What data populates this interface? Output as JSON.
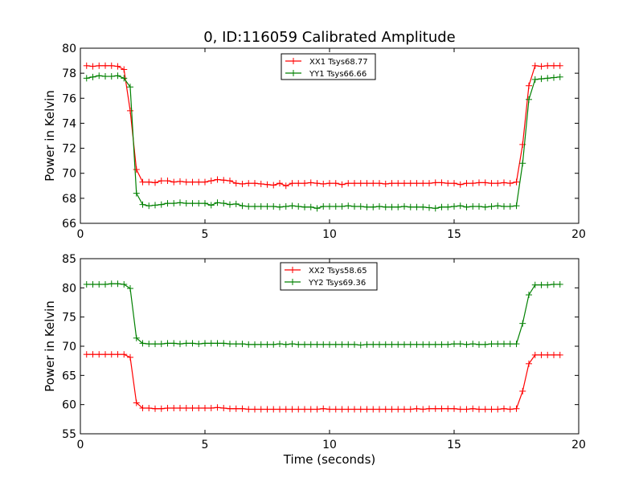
{
  "figure": {
    "title": "0, ID:116059 Calibrated Amplitude"
  },
  "chart_data": [
    {
      "type": "line",
      "title": "0, ID:116059 Calibrated Amplitude",
      "xlabel": "",
      "ylabel": "Power in Kelvin",
      "xlim": [
        0,
        20
      ],
      "ylim": [
        66,
        80
      ],
      "xticks": [
        "0",
        "5",
        "10",
        "15",
        "20"
      ],
      "yticks": [
        "66",
        "68",
        "70",
        "72",
        "74",
        "76",
        "78",
        "80"
      ],
      "grid": false,
      "legend_position": "top-center",
      "series": [
        {
          "name": "XX1 Tsys68.77",
          "color": "#ff0000",
          "x": [
            0.25,
            0.5,
            0.75,
            1.0,
            1.25,
            1.5,
            1.75,
            2.0,
            2.25,
            2.5,
            2.75,
            3.0,
            3.25,
            3.5,
            3.75,
            4.0,
            4.25,
            4.5,
            4.75,
            5.0,
            5.25,
            5.5,
            5.75,
            6.0,
            6.25,
            6.5,
            6.75,
            7.0,
            7.25,
            7.5,
            7.75,
            8.0,
            8.25,
            8.5,
            8.75,
            9.0,
            9.25,
            9.5,
            9.75,
            10.0,
            10.25,
            10.5,
            10.75,
            11.0,
            11.25,
            11.5,
            11.75,
            12.0,
            12.25,
            12.5,
            12.75,
            13.0,
            13.25,
            13.5,
            13.75,
            14.0,
            14.25,
            14.5,
            14.75,
            15.0,
            15.25,
            15.5,
            15.75,
            16.0,
            16.25,
            16.5,
            16.75,
            17.0,
            17.25,
            17.5,
            17.75,
            18.0,
            18.25,
            18.5,
            18.75,
            19.0,
            19.25
          ],
          "y": [
            78.6,
            78.55,
            78.6,
            78.6,
            78.6,
            78.55,
            78.3,
            75.0,
            70.3,
            69.3,
            69.3,
            69.25,
            69.4,
            69.4,
            69.3,
            69.35,
            69.3,
            69.3,
            69.3,
            69.3,
            69.4,
            69.5,
            69.45,
            69.4,
            69.2,
            69.15,
            69.2,
            69.2,
            69.15,
            69.1,
            69.05,
            69.2,
            69.0,
            69.2,
            69.2,
            69.2,
            69.25,
            69.2,
            69.15,
            69.2,
            69.2,
            69.1,
            69.2,
            69.2,
            69.2,
            69.2,
            69.2,
            69.2,
            69.15,
            69.2,
            69.2,
            69.2,
            69.2,
            69.2,
            69.2,
            69.2,
            69.25,
            69.25,
            69.2,
            69.2,
            69.1,
            69.2,
            69.2,
            69.25,
            69.25,
            69.2,
            69.2,
            69.25,
            69.2,
            69.3,
            72.3,
            77.0,
            78.6,
            78.55,
            78.6,
            78.6,
            78.6
          ]
        },
        {
          "name": "YY1 Tsys66.66",
          "color": "#008000",
          "x": [
            0.25,
            0.5,
            0.75,
            1.0,
            1.25,
            1.5,
            1.75,
            2.0,
            2.25,
            2.5,
            2.75,
            3.0,
            3.25,
            3.5,
            3.75,
            4.0,
            4.25,
            4.5,
            4.75,
            5.0,
            5.25,
            5.5,
            5.75,
            6.0,
            6.25,
            6.5,
            6.75,
            7.0,
            7.25,
            7.5,
            7.75,
            8.0,
            8.25,
            8.5,
            8.75,
            9.0,
            9.25,
            9.5,
            9.75,
            10.0,
            10.25,
            10.5,
            10.75,
            11.0,
            11.25,
            11.5,
            11.75,
            12.0,
            12.25,
            12.5,
            12.75,
            13.0,
            13.25,
            13.5,
            13.75,
            14.0,
            14.25,
            14.5,
            14.75,
            15.0,
            15.25,
            15.5,
            15.75,
            16.0,
            16.25,
            16.5,
            16.75,
            17.0,
            17.25,
            17.5,
            17.75,
            18.0,
            18.25,
            18.5,
            18.75,
            19.0,
            19.25
          ],
          "y": [
            77.6,
            77.7,
            77.8,
            77.75,
            77.75,
            77.8,
            77.6,
            76.9,
            68.4,
            67.5,
            67.4,
            67.45,
            67.5,
            67.6,
            67.6,
            67.65,
            67.6,
            67.6,
            67.6,
            67.6,
            67.45,
            67.65,
            67.6,
            67.5,
            67.55,
            67.4,
            67.35,
            67.35,
            67.35,
            67.35,
            67.35,
            67.3,
            67.35,
            67.4,
            67.35,
            67.3,
            67.3,
            67.2,
            67.35,
            67.35,
            67.35,
            67.35,
            67.4,
            67.35,
            67.35,
            67.3,
            67.3,
            67.35,
            67.3,
            67.3,
            67.3,
            67.35,
            67.3,
            67.3,
            67.3,
            67.25,
            67.2,
            67.3,
            67.3,
            67.35,
            67.4,
            67.3,
            67.35,
            67.35,
            67.3,
            67.35,
            67.4,
            67.35,
            67.35,
            67.4,
            70.8,
            75.9,
            77.5,
            77.55,
            77.6,
            77.65,
            77.7
          ]
        }
      ]
    },
    {
      "type": "line",
      "title": "",
      "xlabel": "Time (seconds)",
      "ylabel": "Power in Kelvin",
      "xlim": [
        0,
        20
      ],
      "ylim": [
        55,
        85
      ],
      "xticks": [
        "0",
        "5",
        "10",
        "15",
        "20"
      ],
      "yticks": [
        "55",
        "60",
        "65",
        "70",
        "75",
        "80",
        "85"
      ],
      "grid": false,
      "legend_position": "top-center",
      "series": [
        {
          "name": "XX2 Tsys58.65",
          "color": "#ff0000",
          "x": [
            0.25,
            0.5,
            0.75,
            1.0,
            1.25,
            1.5,
            1.75,
            2.0,
            2.25,
            2.5,
            2.75,
            3.0,
            3.25,
            3.5,
            3.75,
            4.0,
            4.25,
            4.5,
            4.75,
            5.0,
            5.25,
            5.5,
            5.75,
            6.0,
            6.25,
            6.5,
            6.75,
            7.0,
            7.25,
            7.5,
            7.75,
            8.0,
            8.25,
            8.5,
            8.75,
            9.0,
            9.25,
            9.5,
            9.75,
            10.0,
            10.25,
            10.5,
            10.75,
            11.0,
            11.25,
            11.5,
            11.75,
            12.0,
            12.25,
            12.5,
            12.75,
            13.0,
            13.25,
            13.5,
            13.75,
            14.0,
            14.25,
            14.5,
            14.75,
            15.0,
            15.25,
            15.5,
            15.75,
            16.0,
            16.25,
            16.5,
            16.75,
            17.0,
            17.25,
            17.5,
            17.75,
            18.0,
            18.25,
            18.5,
            18.75,
            19.0,
            19.25
          ],
          "y": [
            68.6,
            68.6,
            68.6,
            68.6,
            68.6,
            68.6,
            68.6,
            68.1,
            60.3,
            59.4,
            59.4,
            59.3,
            59.3,
            59.4,
            59.4,
            59.4,
            59.4,
            59.4,
            59.4,
            59.4,
            59.4,
            59.5,
            59.4,
            59.3,
            59.3,
            59.3,
            59.2,
            59.2,
            59.2,
            59.2,
            59.2,
            59.2,
            59.2,
            59.2,
            59.2,
            59.2,
            59.2,
            59.2,
            59.3,
            59.2,
            59.2,
            59.2,
            59.2,
            59.2,
            59.2,
            59.2,
            59.2,
            59.2,
            59.2,
            59.2,
            59.2,
            59.2,
            59.2,
            59.3,
            59.2,
            59.3,
            59.3,
            59.3,
            59.3,
            59.3,
            59.2,
            59.2,
            59.3,
            59.2,
            59.2,
            59.2,
            59.2,
            59.3,
            59.2,
            59.3,
            62.3,
            67.0,
            68.5,
            68.5,
            68.5,
            68.5,
            68.5
          ]
        },
        {
          "name": "YY2 Tsys69.36",
          "color": "#008000",
          "x": [
            0.25,
            0.5,
            0.75,
            1.0,
            1.25,
            1.5,
            1.75,
            2.0,
            2.25,
            2.5,
            2.75,
            3.0,
            3.25,
            3.5,
            3.75,
            4.0,
            4.25,
            4.5,
            4.75,
            5.0,
            5.25,
            5.5,
            5.75,
            6.0,
            6.25,
            6.5,
            6.75,
            7.0,
            7.25,
            7.5,
            7.75,
            8.0,
            8.25,
            8.5,
            8.75,
            9.0,
            9.25,
            9.5,
            9.75,
            10.0,
            10.25,
            10.5,
            10.75,
            11.0,
            11.25,
            11.5,
            11.75,
            12.0,
            12.25,
            12.5,
            12.75,
            13.0,
            13.25,
            13.5,
            13.75,
            14.0,
            14.25,
            14.5,
            14.75,
            15.0,
            15.25,
            15.5,
            15.75,
            16.0,
            16.25,
            16.5,
            16.75,
            17.0,
            17.25,
            17.5,
            17.75,
            18.0,
            18.25,
            18.5,
            18.75,
            19.0,
            19.25
          ],
          "y": [
            80.6,
            80.6,
            80.6,
            80.6,
            80.7,
            80.7,
            80.6,
            79.9,
            71.4,
            70.5,
            70.4,
            70.4,
            70.4,
            70.5,
            70.5,
            70.4,
            70.5,
            70.5,
            70.4,
            70.5,
            70.5,
            70.5,
            70.5,
            70.4,
            70.4,
            70.4,
            70.3,
            70.3,
            70.3,
            70.3,
            70.3,
            70.4,
            70.3,
            70.4,
            70.3,
            70.3,
            70.3,
            70.3,
            70.3,
            70.3,
            70.3,
            70.3,
            70.3,
            70.3,
            70.2,
            70.3,
            70.3,
            70.3,
            70.3,
            70.3,
            70.3,
            70.3,
            70.3,
            70.3,
            70.3,
            70.3,
            70.3,
            70.3,
            70.3,
            70.4,
            70.4,
            70.3,
            70.4,
            70.3,
            70.3,
            70.4,
            70.4,
            70.4,
            70.4,
            70.4,
            73.9,
            78.8,
            80.5,
            80.5,
            80.5,
            80.6,
            80.6
          ]
        }
      ]
    }
  ]
}
